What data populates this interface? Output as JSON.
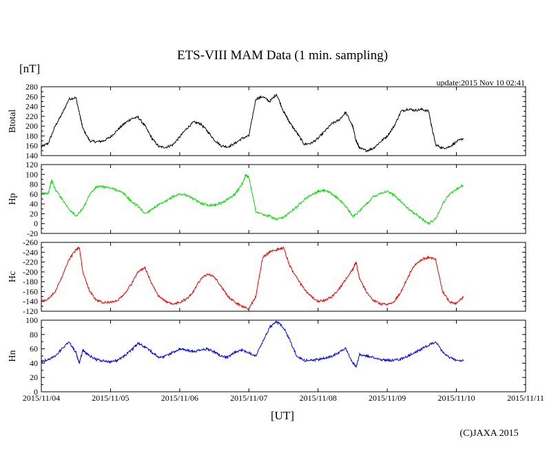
{
  "title": "ETS-VIII MAM Data (1 min. sampling)",
  "unit_label": "[nT]",
  "update_label": "update:2015 Nov 10 02:41",
  "xlabel": "[UT]",
  "copyright": "(C)JAXA 2015",
  "x_ticks": [
    "2015/11/04",
    "2015/11/05",
    "2015/11/06",
    "2015/11/07",
    "2015/11/08",
    "2015/11/09",
    "2015/11/10",
    "2015/11/11"
  ],
  "chart_data": {
    "type": "line",
    "x_unit": "days since 2015/11/04 00:00 UT",
    "xlim": [
      0,
      7
    ],
    "panels": [
      {
        "name": "Btotal",
        "label": "Btotal",
        "color": "#000000",
        "ylim": [
          140,
          280
        ],
        "y_inverted": false,
        "yticks": [
          140,
          160,
          180,
          200,
          220,
          240,
          260,
          280
        ],
        "x": [
          0.0,
          0.1,
          0.2,
          0.3,
          0.4,
          0.5,
          0.56,
          0.6,
          0.7,
          0.8,
          0.9,
          1.0,
          1.1,
          1.2,
          1.3,
          1.4,
          1.5,
          1.6,
          1.7,
          1.8,
          1.9,
          2.0,
          2.1,
          2.2,
          2.3,
          2.4,
          2.5,
          2.6,
          2.7,
          2.8,
          2.9,
          3.0,
          3.1,
          3.2,
          3.3,
          3.4,
          3.5,
          3.55,
          3.6,
          3.7,
          3.8,
          3.9,
          4.0,
          4.1,
          4.2,
          4.3,
          4.4,
          4.5,
          4.55,
          4.6,
          4.7,
          4.8,
          4.9,
          5.0,
          5.1,
          5.2,
          5.3,
          5.4,
          5.5,
          5.6,
          5.64,
          5.7,
          5.8,
          5.9,
          6.0,
          6.1
        ],
        "y": [
          158,
          165,
          200,
          225,
          255,
          258,
          220,
          195,
          170,
          168,
          170,
          178,
          192,
          205,
          215,
          218,
          200,
          175,
          158,
          157,
          162,
          178,
          195,
          208,
          205,
          190,
          172,
          160,
          158,
          165,
          175,
          180,
          255,
          260,
          250,
          265,
          230,
          218,
          205,
          185,
          163,
          165,
          175,
          190,
          205,
          212,
          228,
          200,
          170,
          155,
          150,
          155,
          168,
          180,
          200,
          230,
          235,
          232,
          234,
          230,
          200,
          162,
          155,
          158,
          168,
          175
        ]
      },
      {
        "name": "Hp",
        "label": "Hp",
        "color": "#00dd00",
        "ylim": [
          -20,
          120
        ],
        "y_inverted": false,
        "yticks": [
          -20,
          0,
          20,
          40,
          60,
          80,
          100,
          120
        ],
        "x": [
          0.0,
          0.1,
          0.15,
          0.2,
          0.3,
          0.4,
          0.5,
          0.6,
          0.7,
          0.8,
          0.9,
          1.0,
          1.1,
          1.2,
          1.3,
          1.4,
          1.5,
          1.6,
          1.7,
          1.8,
          1.9,
          2.0,
          2.1,
          2.2,
          2.3,
          2.4,
          2.5,
          2.6,
          2.7,
          2.8,
          2.9,
          2.95,
          3.0,
          3.1,
          3.2,
          3.3,
          3.4,
          3.5,
          3.6,
          3.7,
          3.8,
          3.9,
          4.0,
          4.1,
          4.2,
          4.3,
          4.4,
          4.5,
          4.6,
          4.7,
          4.8,
          4.9,
          5.0,
          5.1,
          5.2,
          5.3,
          5.4,
          5.5,
          5.6,
          5.7,
          5.8,
          5.9,
          6.0,
          6.1
        ],
        "y": [
          62,
          62,
          88,
          70,
          50,
          30,
          15,
          30,
          60,
          75,
          75,
          72,
          68,
          60,
          45,
          35,
          20,
          30,
          38,
          45,
          55,
          60,
          58,
          50,
          42,
          38,
          38,
          42,
          50,
          60,
          80,
          98,
          95,
          25,
          18,
          15,
          8,
          12,
          25,
          35,
          50,
          58,
          65,
          68,
          60,
          50,
          35,
          15,
          25,
          40,
          55,
          62,
          65,
          58,
          45,
          30,
          20,
          10,
          0,
          10,
          40,
          60,
          70,
          78
        ]
      },
      {
        "name": "Hc",
        "label": "Hc",
        "color": "#ee0000",
        "ylim": [
          -260,
          -120
        ],
        "y_inverted": true,
        "yticks": [
          -260,
          -240,
          -220,
          -200,
          -180,
          -160,
          -140,
          -120
        ],
        "x": [
          0.0,
          0.1,
          0.2,
          0.3,
          0.4,
          0.5,
          0.55,
          0.6,
          0.7,
          0.8,
          0.9,
          1.0,
          1.1,
          1.2,
          1.3,
          1.4,
          1.5,
          1.6,
          1.7,
          1.8,
          1.9,
          2.0,
          2.1,
          2.2,
          2.3,
          2.4,
          2.5,
          2.6,
          2.7,
          2.8,
          2.9,
          3.0,
          3.1,
          3.2,
          3.3,
          3.4,
          3.5,
          3.6,
          3.7,
          3.8,
          3.9,
          4.0,
          4.1,
          4.2,
          4.3,
          4.4,
          4.5,
          4.55,
          4.6,
          4.7,
          4.8,
          4.9,
          5.0,
          5.1,
          5.2,
          5.3,
          5.4,
          5.5,
          5.6,
          5.7,
          5.8,
          5.9,
          6.0,
          6.1
        ],
        "y": [
          -140,
          -145,
          -160,
          -190,
          -225,
          -245,
          -250,
          -200,
          -160,
          -142,
          -138,
          -138,
          -142,
          -155,
          -175,
          -200,
          -208,
          -175,
          -150,
          -140,
          -135,
          -138,
          -145,
          -160,
          -185,
          -195,
          -190,
          -170,
          -150,
          -138,
          -130,
          -125,
          -150,
          -230,
          -240,
          -245,
          -248,
          -210,
          -185,
          -165,
          -150,
          -140,
          -142,
          -150,
          -165,
          -185,
          -205,
          -220,
          -185,
          -160,
          -142,
          -135,
          -135,
          -140,
          -160,
          -190,
          -215,
          -225,
          -230,
          -225,
          -160,
          -140,
          -135,
          -150
        ]
      },
      {
        "name": "Hn",
        "label": "Hn",
        "color": "#0000ee",
        "ylim": [
          0,
          100
        ],
        "y_inverted": false,
        "yticks": [
          0,
          20,
          40,
          60,
          80,
          100
        ],
        "x": [
          0.0,
          0.1,
          0.2,
          0.3,
          0.4,
          0.5,
          0.55,
          0.6,
          0.7,
          0.8,
          0.9,
          1.0,
          1.1,
          1.2,
          1.3,
          1.4,
          1.5,
          1.6,
          1.7,
          1.8,
          1.9,
          2.0,
          2.1,
          2.2,
          2.3,
          2.4,
          2.5,
          2.6,
          2.7,
          2.8,
          2.9,
          3.0,
          3.1,
          3.2,
          3.3,
          3.4,
          3.5,
          3.6,
          3.7,
          3.8,
          3.9,
          4.0,
          4.1,
          4.2,
          4.3,
          4.4,
          4.5,
          4.55,
          4.6,
          4.7,
          4.8,
          4.9,
          5.0,
          5.1,
          5.2,
          5.3,
          5.4,
          5.5,
          5.6,
          5.7,
          5.8,
          5.9,
          6.0,
          6.1
        ],
        "y": [
          42,
          45,
          50,
          60,
          70,
          55,
          40,
          58,
          50,
          45,
          43,
          42,
          44,
          50,
          58,
          68,
          62,
          55,
          48,
          50,
          55,
          60,
          58,
          56,
          58,
          60,
          56,
          50,
          48,
          55,
          58,
          55,
          50,
          70,
          90,
          98,
          90,
          70,
          48,
          44,
          44,
          45,
          47,
          50,
          55,
          60,
          40,
          35,
          52,
          50,
          48,
          45,
          44,
          44,
          46,
          50,
          55,
          60,
          65,
          70,
          55,
          48,
          44,
          43
        ]
      }
    ]
  }
}
